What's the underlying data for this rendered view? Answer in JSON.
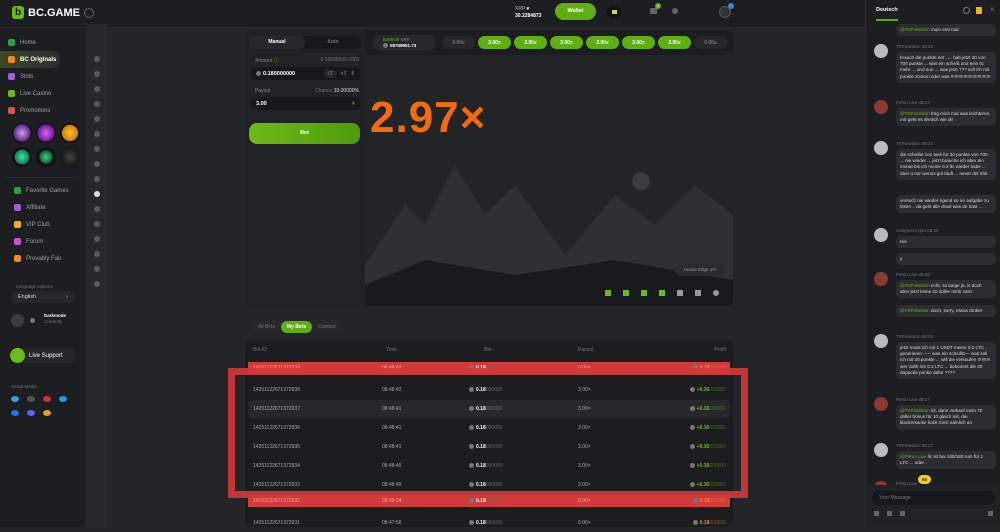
{
  "header": {
    "brand": "BC.GAME",
    "currency": "XRP",
    "balance": "30.2284873",
    "wallet": "Wallet",
    "notif_count": "4"
  },
  "sidebar": {
    "items": [
      {
        "label": "Home",
        "color": "#23a24a"
      },
      {
        "label": "BC Originals",
        "color": "#f08a1c"
      },
      {
        "label": "Slots",
        "color": "#a35cd8"
      },
      {
        "label": "Live Casino",
        "color": "#6dbb18"
      },
      {
        "label": "Promotions",
        "color": "#d9534f"
      }
    ],
    "items2": [
      {
        "label": "Favorite Games",
        "color": "#23a24a"
      },
      {
        "label": "Affiliate",
        "color": "#a35cd8"
      },
      {
        "label": "VIP Club",
        "color": "#f2b01e"
      },
      {
        "label": "Forum",
        "color": "#c94fd8"
      },
      {
        "label": "Provably Fair",
        "color": "#f08a1c"
      }
    ],
    "language_label": "Language Options",
    "language": "English",
    "darkmode": "Darkmode",
    "darkmode_sub": "Currently",
    "live_support": "Live Support",
    "social_label": "Social Media"
  },
  "game": {
    "tabs": [
      "Manual",
      "Auto"
    ],
    "amount_label": "Amount",
    "amount_usd": "0.10098620 USD",
    "amount": "0.180000000",
    "half": "/2",
    "double": "x2",
    "payout_label": "Payout",
    "chance_label": "Chance",
    "chance": "33.00000%",
    "payout": "3.00",
    "bet": "Bet",
    "bankroll_label": "Bankroll",
    "bankroll_currency": "XRP",
    "bankroll": "58769951.73",
    "history": [
      {
        "v": "0.00x",
        "win": false
      },
      {
        "v": "3.00x",
        "win": true
      },
      {
        "v": "3.00x",
        "win": true
      },
      {
        "v": "3.00x",
        "win": true
      },
      {
        "v": "3.00x",
        "win": true
      },
      {
        "v": "3.00x",
        "win": true
      },
      {
        "v": "3.00x",
        "win": true
      },
      {
        "v": "0.00x",
        "win": false
      }
    ],
    "multiplier": "2.97×",
    "house_edge": "House Edge 1%"
  },
  "bets": {
    "tabs": [
      "All Bets",
      "My Bets",
      "Contest"
    ],
    "active_tab": "My Bets",
    "columns": [
      "Bet ID",
      "Time",
      "Bet",
      "Payout",
      "Profit"
    ],
    "rows": [
      {
        "id": "14251122671372939",
        "time": "08:48:42",
        "bet_b": "0.18",
        "bet_r": "000000",
        "payout": "0.00×",
        "profit_b": "0.18",
        "profit_r": "000000",
        "win": false
      },
      {
        "id": "14251122671372938",
        "time": "08:48:42",
        "bet_b": "0.18",
        "bet_r": "000000",
        "payout": "3.00×",
        "profit_b": "+0.36",
        "profit_r": "000000",
        "win": true
      },
      {
        "id": "14251122671372937",
        "time": "08:48:41",
        "bet_b": "0.18",
        "bet_r": "000000",
        "payout": "3.00×",
        "profit_b": "+0.36",
        "profit_r": "000000",
        "win": true
      },
      {
        "id": "14251122671372936",
        "time": "08:48:41",
        "bet_b": "0.18",
        "bet_r": "000000",
        "payout": "3.00×",
        "profit_b": "+0.36",
        "profit_r": "000000",
        "win": true
      },
      {
        "id": "14251122671372935",
        "time": "08:48:41",
        "bet_b": "0.18",
        "bet_r": "000000",
        "payout": "3.00×",
        "profit_b": "+0.36",
        "profit_r": "000000",
        "win": true
      },
      {
        "id": "14251122671372934",
        "time": "08:48:40",
        "bet_b": "0.18",
        "bet_r": "000000",
        "payout": "3.00×",
        "profit_b": "+0.36",
        "profit_r": "000000",
        "win": true
      },
      {
        "id": "14251122671372933",
        "time": "08:48:40",
        "bet_b": "0.18",
        "bet_r": "000000",
        "payout": "3.00×",
        "profit_b": "+0.36",
        "profit_r": "000000",
        "win": true
      },
      {
        "id": "14251122671372932",
        "time": "08:48:24",
        "bet_b": "0.18",
        "bet_r": "000000",
        "payout": "0.00×",
        "profit_b": "0.18",
        "profit_r": "000000",
        "win": false
      },
      {
        "id": "14251122671372931",
        "time": "08:47:56",
        "bet_b": "0.18",
        "bet_r": "000000",
        "payout": "0.00×",
        "profit_b": "0.18",
        "profit_r": "000000",
        "win": false
      }
    ]
  },
  "chat": {
    "language": "Deutsch",
    "input_placeholder": "Your Message",
    "new_count": "65",
    "messages": [
      {
        "user": "",
        "time": "",
        "mention": "@TKPoseidon",
        "text": "moin erst mal"
      },
      {
        "user": "TKPoseidon",
        "time": "08:22",
        "mention": "",
        "text": "brauch die punkte net ..... hab jetzt 30 von 700 punkte ... was ein scheiß und kein ltc mehr ... und nun ... was jetzt ??? soll ich mit punkte zocken oder was !!!!!!!!!!!!!!!!!!!!!!!!!!!!!!!"
      },
      {
        "user": "Primo Live",
        "time": "08:23",
        "mention": "@TKPoseidon",
        "text": "frag mich mal was leichteres, mir geht es ähnlich wie dir"
      },
      {
        "user": "TKPoseidon",
        "time": "08:24",
        "mention": "",
        "text": "die scheiße con task für 30 punkte von 700 ... nie wieder ... jetzt brauche ich aber ein monat bis ich meine 0.2 ltc wieder habe ... aber a nur wenns gut läuft ... never der shit"
      },
      {
        "user": "",
        "time": "",
        "mention": "",
        "text": "versuch nie wieder irgend so ne aufgabe zu lösen .. da geht alle drauf was de hast ..."
      },
      {
        "user": "CologneCrypto",
        "time": "08:25",
        "mention": "",
        "text": "Hie"
      },
      {
        "user": "",
        "time": "",
        "mention": "",
        "text": "y"
      },
      {
        "user": "Primo Live",
        "time": "08:25",
        "mention": "@TKPoseidon",
        "text": "echt, so lange ja, is doch aber jetzt keine 20 doller mehr wert"
      },
      {
        "user": "",
        "time": "",
        "mention": "@TKPoseidon",
        "text": "doch, sorry, etwas drüber"
      },
      {
        "user": "TKPoseidon",
        "time": "08:26",
        "mention": "",
        "text": "jetzt muss ich mit 1 USDT meine 0.2 LTC generieren ----- was ein scheiß0--- was soll ich mit 30 punkte ... will die verkaufen !!!!!!!!!! wer zahlt mir 0.2 LTC ... bekommt die 30 dappede punke dafür ????"
      },
      {
        "user": "Primo Live",
        "time": "08:27",
        "mention": "@TKPoseidon",
        "text": "lol, dann verkauf mein 70 doller bonus für 10 gleich mit, die klackerkacke kotzt mich nämlich an"
      },
      {
        "user": "TKPoseidon",
        "time": "08:27",
        "mention": "@Primo Live",
        "text": "ltc ist bei 160/180 rum für 1 LTC ... oder.."
      },
      {
        "user": "Primo Live",
        "time": "",
        "mention": "",
        "text": ""
      }
    ]
  }
}
